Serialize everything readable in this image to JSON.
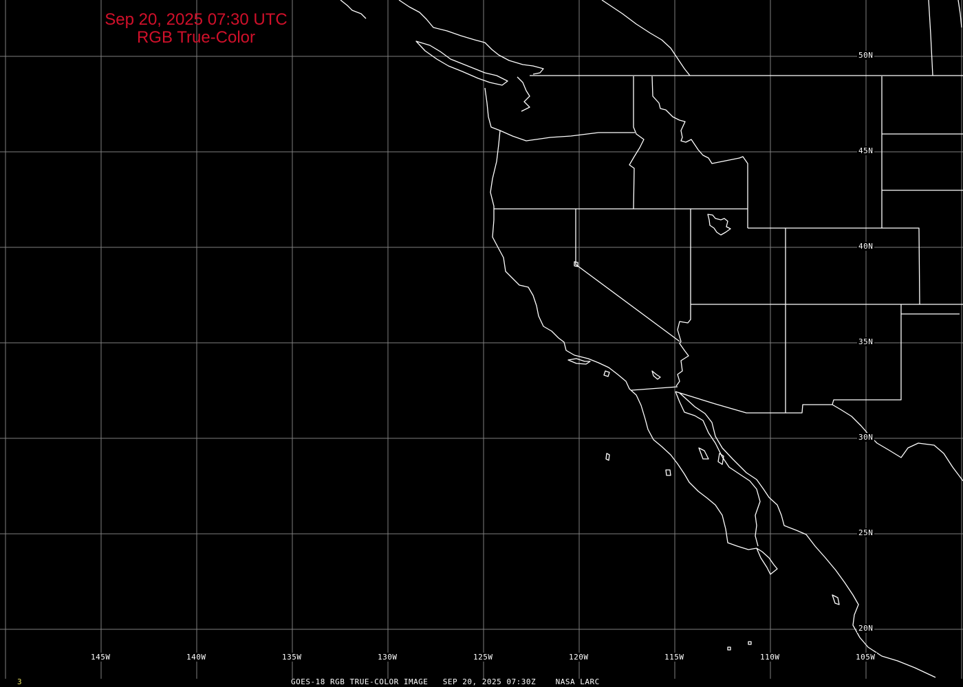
{
  "title": {
    "line1": "Sep 20, 2025 07:30 UTC",
    "line2": "RGB True-Color",
    "color": "#d0102a"
  },
  "grid": {
    "color": "#808080",
    "longitudes": [
      {
        "value": -145,
        "label": "145W"
      },
      {
        "value": -140,
        "label": "140W"
      },
      {
        "value": -135,
        "label": "135W"
      },
      {
        "value": -130,
        "label": "130W"
      },
      {
        "value": -125,
        "label": "125W"
      },
      {
        "value": -120,
        "label": "120W"
      },
      {
        "value": -115,
        "label": "115W"
      },
      {
        "value": -110,
        "label": "110W"
      },
      {
        "value": -105,
        "label": "105W"
      }
    ],
    "latitudes": [
      {
        "value": 50,
        "label": "50N"
      },
      {
        "value": 45,
        "label": "45N"
      },
      {
        "value": 40,
        "label": "40N"
      },
      {
        "value": 35,
        "label": "35N"
      },
      {
        "value": 30,
        "label": "30N"
      },
      {
        "value": 25,
        "label": "25N"
      },
      {
        "value": 20,
        "label": "20N"
      }
    ]
  },
  "footer": {
    "frame_number": "3",
    "text": "GOES-18 RGB TRUE-COLOR IMAGE   SEP 20, 2025 07:30Z    NASA LARC"
  },
  "map": {
    "boundary_color": "#ffffff",
    "background_color": "#000000"
  }
}
